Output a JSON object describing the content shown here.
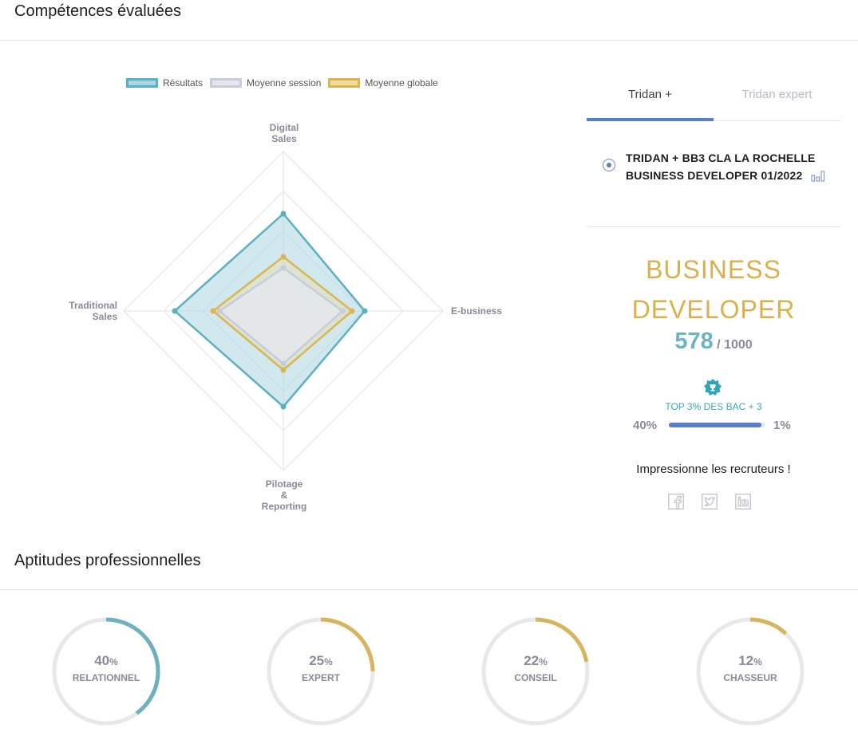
{
  "sections": {
    "competences_title": "Compétences évaluées",
    "aptitudes_title": "Aptitudes professionnelles"
  },
  "legend": [
    {
      "label": "Résultats",
      "fill": "#a9d6e0",
      "stroke": "#5bb0bf"
    },
    {
      "label": "Moyenne session",
      "fill": "#e6e8ef",
      "stroke": "#c8ccda"
    },
    {
      "label": "Moyenne globale",
      "fill": "#f2dc9a",
      "stroke": "#dcb552"
    }
  ],
  "chart_data": {
    "type": "radar",
    "axes": [
      "Digital Sales",
      "E-business",
      "Pilotage & Reporting",
      "Traditional Sales"
    ],
    "axis_label_lines": [
      [
        "Digital",
        "Sales"
      ],
      [
        "E-business"
      ],
      [
        "Pilotage",
        "&",
        "Reporting"
      ],
      [
        "Traditional",
        "Sales"
      ]
    ],
    "rlim": [
      0,
      100
    ],
    "grid_levels": 4,
    "series": [
      {
        "name": "Résultats",
        "values": [
          61,
          51,
          60,
          68
        ]
      },
      {
        "name": "Moyenne session",
        "values": [
          27,
          37,
          33,
          40
        ]
      },
      {
        "name": "Moyenne globale",
        "values": [
          34,
          43,
          37,
          44
        ]
      }
    ]
  },
  "tabs": [
    {
      "label": "Tridan +",
      "active": true
    },
    {
      "label": "Tridan expert",
      "active": false
    }
  ],
  "session": {
    "line1": "TRIDAN + BB3 CLA LA ROCHELLE",
    "line2": "BUSINESS DEVELOPER 01/2022",
    "icon": "bar-chart-icon"
  },
  "profile": {
    "line1": "BUSINESS",
    "line2": "DEVELOPER",
    "score": "578",
    "score_max": "/ 1000",
    "badge_icon": "trophy-badge-icon",
    "top_text": "TOP 3% DES BAC + 3",
    "bar_left_label": "40%",
    "bar_right_label": "1%",
    "bar_fill_fraction": 0.97
  },
  "share": {
    "title": "Impressionne les recruteurs !",
    "icons": [
      "facebook-icon",
      "twitter-icon",
      "linkedin-icon"
    ]
  },
  "aptitudes": [
    {
      "name": "RELATIONNEL",
      "value": "40",
      "unit": "%",
      "percent": 40,
      "color": "#6fb0c0"
    },
    {
      "name": "EXPERT",
      "value": "25",
      "unit": "%",
      "percent": 25,
      "color": "#d8b45c"
    },
    {
      "name": "CONSEIL",
      "value": "22",
      "unit": "%",
      "percent": 22,
      "color": "#d8b45c"
    },
    {
      "name": "CHASSEUR",
      "value": "12",
      "unit": "%",
      "percent": 12,
      "color": "#d8b45c"
    }
  ]
}
